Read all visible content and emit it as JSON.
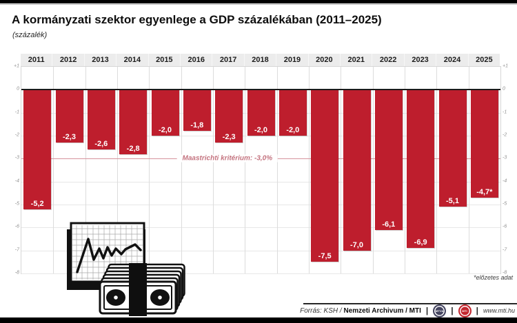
{
  "header": {
    "title": "A kormányzati szektor egyenlege a GDP százalékában (2011–2025)",
    "subtitle": "(százalék)"
  },
  "chart_data": {
    "type": "bar",
    "title": "A kormányzati szektor egyenlege a GDP százalékában (2011–2025)",
    "ylabel": "százalék",
    "categories": [
      "2011",
      "2012",
      "2013",
      "2014",
      "2015",
      "2016",
      "2017",
      "2018",
      "2019",
      "2020",
      "2021",
      "2022",
      "2023",
      "2024",
      "2025"
    ],
    "values": [
      -5.2,
      -2.3,
      -2.6,
      -2.8,
      -2.0,
      -1.8,
      -2.3,
      -2.0,
      -2.0,
      -7.5,
      -7.0,
      -6.1,
      -6.9,
      -5.1,
      -4.7
    ],
    "value_labels": [
      "-5,2",
      "-2,3",
      "-2,6",
      "-2,8",
      "-2,0",
      "-1,8",
      "-2,3",
      "-2,0",
      "-2,0",
      "-7,5",
      "-7,0",
      "-6,1",
      "-6,9",
      "-5,1",
      "-4,7*"
    ],
    "ylim": [
      -8,
      1
    ],
    "y_ticks": [
      {
        "label": "+1",
        "value": 1
      },
      {
        "label": "0",
        "value": 0
      },
      {
        "label": "-1",
        "value": -1
      },
      {
        "label": "-2",
        "value": -2
      },
      {
        "label": "-3",
        "value": -3
      },
      {
        "label": "-4",
        "value": -4
      },
      {
        "label": "-5",
        "value": -5
      },
      {
        "label": "-6",
        "value": -6
      },
      {
        "label": "-7",
        "value": -7
      },
      {
        "label": "-8",
        "value": -8
      }
    ],
    "grid": true,
    "legend": false,
    "axis_labels_position": "both-sides",
    "reference_line": {
      "value": -3.0,
      "label": "Maastrichti kritérium: -3,0%"
    },
    "colors": {
      "bar": "#be1e2d",
      "reference_line": "#d6929b",
      "reference_label": "#c4737f",
      "zero_line": "#1a1a1a"
    }
  },
  "footnote": "*előzetes adat",
  "footer": {
    "source_prefix": "Forrás: KSH /",
    "source_bold": "Nemzeti Archivum / MTI",
    "separator": "|",
    "logo_mtva": "MTVA",
    "logo_mti": "MTI",
    "url": "www.mti.hu"
  },
  "icons": {
    "illustration": "chart-and-banknotes-illustration"
  }
}
